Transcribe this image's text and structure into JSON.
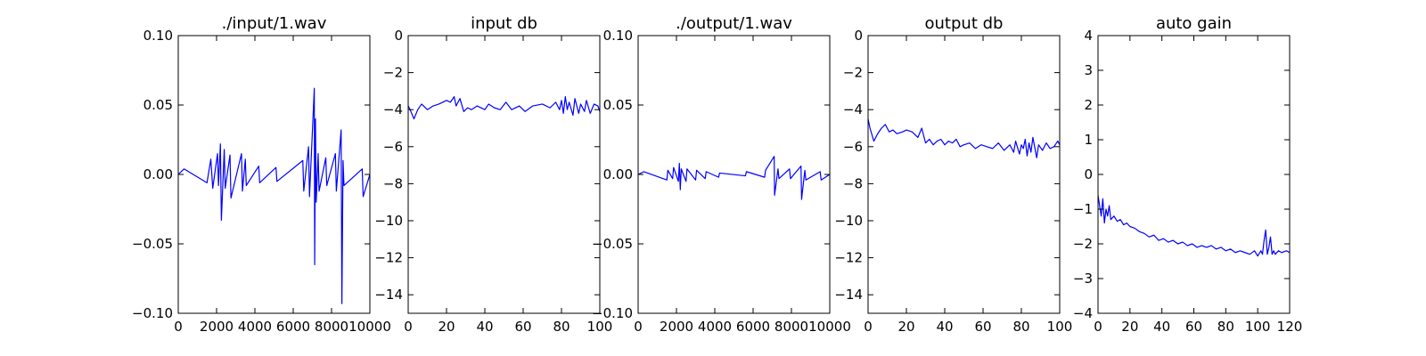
{
  "figure": {
    "line_color": "#0000ff"
  },
  "chart_data": [
    {
      "type": "line",
      "title": "./input/1.wav",
      "xlim": [
        0,
        10000
      ],
      "ylim": [
        -0.1,
        0.1
      ],
      "xticks": [
        0,
        2000,
        4000,
        6000,
        8000,
        10000
      ],
      "xtick_labels": [
        "0",
        "2000",
        "4000",
        "6000",
        "8000",
        "10000"
      ],
      "yticks": [
        0.1,
        0.05,
        0.0,
        -0.05,
        -0.1
      ],
      "ytick_labels": [
        "0.10",
        "0.05",
        "0.00",
        "−0.05",
        "−0.10"
      ],
      "grid": false,
      "series": [
        {
          "x": [
            0,
            300,
            1500,
            1700,
            1800,
            2050,
            2100,
            2200,
            2250,
            2400,
            2450,
            2700,
            2750,
            3300,
            3350,
            3500,
            3550,
            4200,
            4250,
            5100,
            5150,
            6500,
            6550,
            6800,
            6850,
            7100,
            7120,
            7160,
            7200,
            7300,
            7350,
            7700,
            7750,
            8200,
            8250,
            8500,
            8540,
            8600,
            8650,
            9600,
            9650,
            10000
          ],
          "y": [
            0.0,
            0.004,
            -0.006,
            0.011,
            -0.01,
            0.015,
            -0.008,
            0.022,
            -0.033,
            0.018,
            -0.01,
            0.014,
            -0.017,
            0.015,
            -0.012,
            0.011,
            -0.008,
            0.006,
            -0.006,
            0.005,
            -0.005,
            0.01,
            -0.012,
            0.02,
            -0.016,
            0.062,
            -0.065,
            0.04,
            -0.02,
            0.015,
            -0.012,
            0.012,
            -0.008,
            0.015,
            -0.012,
            0.032,
            -0.093,
            0.01,
            -0.008,
            0.004,
            -0.016,
            0.0
          ]
        }
      ]
    },
    {
      "type": "line",
      "title": "input db",
      "xlim": [
        0,
        100
      ],
      "ylim": [
        -15,
        0
      ],
      "xticks": [
        0,
        20,
        40,
        60,
        80,
        100
      ],
      "xtick_labels": [
        "0",
        "20",
        "40",
        "60",
        "80",
        "100"
      ],
      "yticks": [
        0,
        -2,
        -4,
        -6,
        -8,
        -10,
        -12,
        -14
      ],
      "ytick_labels": [
        "0",
        "−2",
        "−4",
        "−6",
        "−8",
        "−10",
        "−12",
        "−14"
      ],
      "grid": false,
      "series": [
        {
          "x": [
            0,
            1,
            3,
            5,
            7,
            10,
            13,
            16,
            20,
            22,
            24,
            25,
            27,
            29,
            31,
            33,
            36,
            40,
            42,
            45,
            48,
            51,
            54,
            58,
            61,
            65,
            70,
            74,
            77,
            79,
            80,
            81,
            82,
            83,
            84,
            86,
            87,
            89,
            90,
            92,
            93,
            95,
            97,
            99,
            100
          ],
          "y": [
            -3.8,
            -4.0,
            -4.5,
            -4.0,
            -3.7,
            -4.0,
            -3.8,
            -3.7,
            -3.5,
            -3.6,
            -3.3,
            -3.8,
            -3.4,
            -4.1,
            -3.9,
            -4.0,
            -3.8,
            -4.0,
            -3.7,
            -3.9,
            -4.0,
            -3.6,
            -4.0,
            -3.8,
            -4.1,
            -3.8,
            -3.7,
            -3.9,
            -3.6,
            -4.0,
            -3.5,
            -4.2,
            -3.3,
            -4.0,
            -3.6,
            -4.3,
            -3.4,
            -4.2,
            -3.7,
            -4.1,
            -3.5,
            -4.2,
            -3.7,
            -3.8,
            -4.1
          ]
        }
      ]
    },
    {
      "type": "line",
      "title": "./output/1.wav",
      "xlim": [
        0,
        10000
      ],
      "ylim": [
        -0.1,
        0.1
      ],
      "xticks": [
        0,
        2000,
        4000,
        6000,
        8000,
        10000
      ],
      "xtick_labels": [
        "0",
        "2000",
        "4000",
        "6000",
        "8000",
        "10000"
      ],
      "yticks": [
        0.1,
        0.05,
        0.0,
        -0.05,
        -0.1
      ],
      "ytick_labels": [
        "0.10",
        "0.05",
        "0.00",
        "−0.05",
        "−0.10"
      ],
      "grid": false,
      "series": [
        {
          "x": [
            0,
            300,
            1500,
            1550,
            1800,
            1850,
            2100,
            2150,
            2200,
            2250,
            2500,
            2550,
            3000,
            3050,
            3500,
            3550,
            4200,
            4250,
            5600,
            5650,
            6600,
            6650,
            7100,
            7120,
            7300,
            7350,
            7900,
            7950,
            8500,
            8530,
            8700,
            8750,
            9500,
            9550,
            10000
          ],
          "y": [
            0.0,
            0.002,
            -0.004,
            0.003,
            -0.003,
            0.005,
            -0.005,
            0.008,
            -0.011,
            0.004,
            -0.005,
            0.004,
            -0.004,
            0.003,
            -0.003,
            0.002,
            -0.002,
            0.001,
            -0.001,
            0.002,
            -0.002,
            0.003,
            0.013,
            -0.015,
            0.004,
            -0.003,
            0.004,
            -0.003,
            0.006,
            -0.018,
            0.003,
            -0.004,
            0.002,
            -0.004,
            0.0
          ]
        }
      ]
    },
    {
      "type": "line",
      "title": "output db",
      "xlim": [
        0,
        100
      ],
      "ylim": [
        -15,
        0
      ],
      "xticks": [
        0,
        20,
        40,
        60,
        80,
        100
      ],
      "xtick_labels": [
        "0",
        "20",
        "40",
        "60",
        "80",
        "100"
      ],
      "yticks": [
        0,
        -2,
        -4,
        -6,
        -8,
        -10,
        -12,
        -14
      ],
      "ytick_labels": [
        "0",
        "−2",
        "−4",
        "−6",
        "−8",
        "−10",
        "−12",
        "−14"
      ],
      "grid": false,
      "series": [
        {
          "x": [
            0,
            1,
            3,
            5,
            7,
            9,
            11,
            13,
            15,
            18,
            20,
            23,
            26,
            28,
            30,
            32,
            34,
            36,
            38,
            40,
            42,
            44,
            46,
            48,
            50,
            53,
            56,
            59,
            62,
            65,
            68,
            71,
            74,
            76,
            77,
            79,
            80,
            81,
            82,
            83,
            84,
            85,
            86,
            88,
            89,
            91,
            93,
            95,
            97,
            99,
            100
          ],
          "y": [
            -4.5,
            -5.0,
            -5.7,
            -5.3,
            -5.0,
            -4.8,
            -5.2,
            -5.1,
            -5.3,
            -5.2,
            -5.1,
            -5.2,
            -5.5,
            -5.0,
            -5.8,
            -5.6,
            -5.9,
            -5.7,
            -5.6,
            -5.9,
            -5.7,
            -5.8,
            -5.6,
            -6.0,
            -5.9,
            -5.8,
            -6.1,
            -5.9,
            -6.0,
            -6.1,
            -5.8,
            -6.2,
            -5.9,
            -6.3,
            -5.7,
            -6.4,
            -5.9,
            -6.1,
            -5.6,
            -6.5,
            -5.8,
            -6.3,
            -5.5,
            -6.6,
            -5.9,
            -6.2,
            -5.8,
            -6.1,
            -6.0,
            -5.7,
            -5.9
          ]
        }
      ]
    },
    {
      "type": "line",
      "title": "auto gain",
      "xlim": [
        0,
        120
      ],
      "ylim": [
        -4,
        4
      ],
      "xticks": [
        0,
        20,
        40,
        60,
        80,
        100,
        120
      ],
      "xtick_labels": [
        "0",
        "20",
        "40",
        "60",
        "80",
        "100",
        "120"
      ],
      "yticks": [
        4,
        3,
        2,
        1,
        0,
        -1,
        -2,
        -3,
        -4
      ],
      "ytick_labels": [
        "4",
        "3",
        "2",
        "1",
        "0",
        "−1",
        "−2",
        "−3",
        "−4"
      ],
      "grid": false,
      "series": [
        {
          "x": [
            0,
            1,
            2,
            3,
            4,
            5,
            6,
            7,
            8,
            10,
            12,
            14,
            16,
            18,
            20,
            23,
            26,
            29,
            32,
            35,
            38,
            41,
            44,
            47,
            50,
            53,
            56,
            59,
            62,
            65,
            68,
            71,
            74,
            77,
            80,
            83,
            86,
            89,
            92,
            95,
            98,
            100,
            102,
            103,
            104,
            105,
            106,
            107,
            108,
            109,
            110,
            111,
            113,
            115,
            118,
            120
          ],
          "y": [
            -0.6,
            -0.9,
            -1.2,
            -0.7,
            -1.4,
            -1.0,
            -1.2,
            -0.9,
            -1.3,
            -1.2,
            -1.35,
            -1.3,
            -1.45,
            -1.4,
            -1.5,
            -1.55,
            -1.65,
            -1.7,
            -1.8,
            -1.75,
            -1.9,
            -1.85,
            -1.95,
            -1.9,
            -2.0,
            -1.95,
            -2.05,
            -2.0,
            -2.1,
            -2.05,
            -2.1,
            -2.05,
            -2.15,
            -2.1,
            -2.2,
            -2.15,
            -2.25,
            -2.2,
            -2.25,
            -2.3,
            -2.2,
            -2.35,
            -2.2,
            -2.3,
            -1.9,
            -1.6,
            -2.3,
            -2.1,
            -1.8,
            -2.3,
            -2.2,
            -2.3,
            -2.2,
            -2.25,
            -2.2,
            -2.25
          ]
        }
      ]
    }
  ]
}
